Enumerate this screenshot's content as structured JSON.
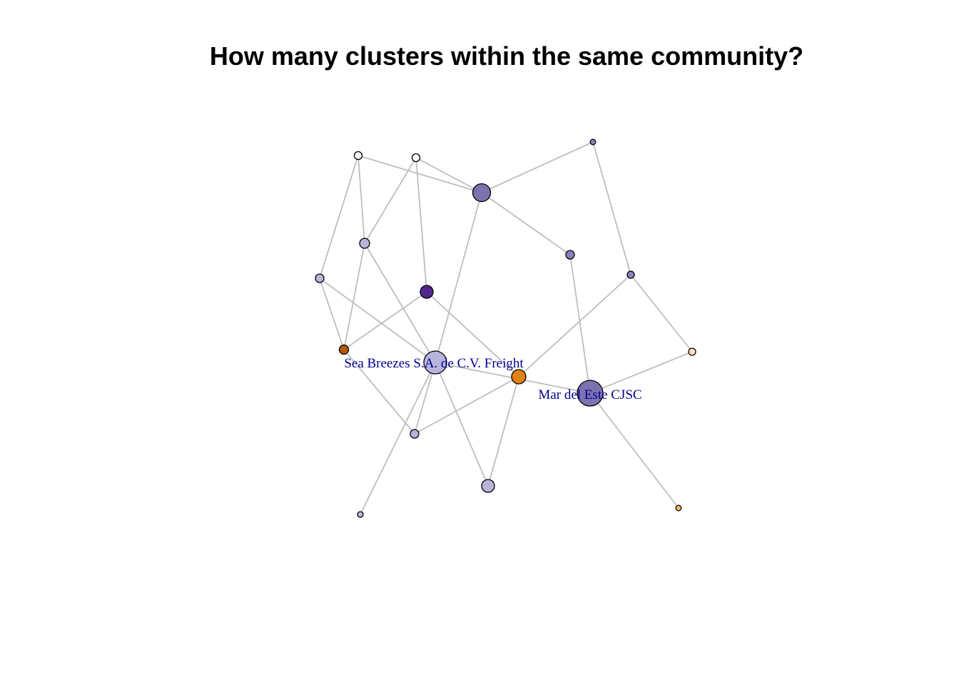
{
  "title": "How many clusters within the same community?",
  "nodes": [
    {
      "id": "n1",
      "color": "#ffffff"
    },
    {
      "id": "n2",
      "color": "#ffffff"
    },
    {
      "id": "n3",
      "color": "#7d72b0"
    },
    {
      "id": "n4",
      "color": "#8a82bb"
    },
    {
      "id": "n5",
      "color": "#b8b4d9"
    },
    {
      "id": "n6",
      "color": "#8a82bb"
    },
    {
      "id": "n7",
      "color": "#b8b4d9"
    },
    {
      "id": "n8",
      "color": "#8a82bb"
    },
    {
      "id": "n9",
      "color": "#54278f"
    },
    {
      "id": "n10",
      "color": "#b35806"
    },
    {
      "id": "n11",
      "color": "#b8b4d9",
      "label": "Sea Breezes S.A. de C.V. Freight"
    },
    {
      "id": "n12",
      "color": "#e08214"
    },
    {
      "id": "n13",
      "color": "#fee0b6"
    },
    {
      "id": "n14",
      "color": "#7d72b0",
      "label": "Mar del Este CJSC"
    },
    {
      "id": "n15",
      "color": "#b8b4d9"
    },
    {
      "id": "n16",
      "color": "#b8b4d9"
    },
    {
      "id": "n17",
      "color": "#b8b4d9"
    },
    {
      "id": "n18",
      "color": "#fdb863"
    }
  ],
  "edges": [
    [
      "n1",
      "n3"
    ],
    [
      "n1",
      "n5"
    ],
    [
      "n1",
      "n7"
    ],
    [
      "n2",
      "n3"
    ],
    [
      "n2",
      "n5"
    ],
    [
      "n2",
      "n9"
    ],
    [
      "n3",
      "n4"
    ],
    [
      "n3",
      "n6"
    ],
    [
      "n3",
      "n11"
    ],
    [
      "n4",
      "n8"
    ],
    [
      "n5",
      "n10"
    ],
    [
      "n5",
      "n11"
    ],
    [
      "n6",
      "n14"
    ],
    [
      "n7",
      "n10"
    ],
    [
      "n7",
      "n11"
    ],
    [
      "n8",
      "n12"
    ],
    [
      "n8",
      "n13"
    ],
    [
      "n9",
      "n10"
    ],
    [
      "n9",
      "n12"
    ],
    [
      "n10",
      "n15"
    ],
    [
      "n11",
      "n14"
    ],
    [
      "n11",
      "n15"
    ],
    [
      "n11",
      "n16"
    ],
    [
      "n11",
      "n17"
    ],
    [
      "n12",
      "n15"
    ],
    [
      "n12",
      "n16"
    ],
    [
      "n13",
      "n14"
    ],
    [
      "n14",
      "n18"
    ]
  ]
}
